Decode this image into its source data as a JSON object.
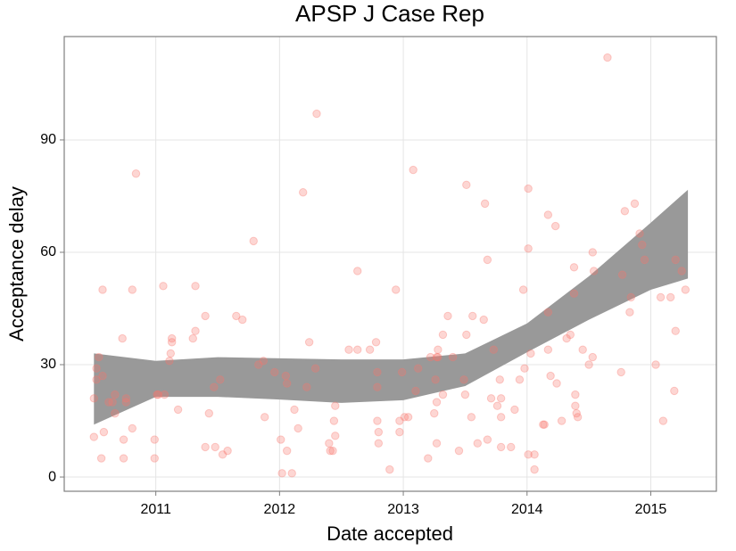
{
  "chart_data": {
    "type": "scatter",
    "title": "APSP J Case Rep",
    "x_label": "Date accepted",
    "y_label": "Acceptance delay",
    "xlim": [
      2010.26,
      2015.53
    ],
    "ylim": [
      -3.8,
      117.6
    ],
    "xticks": [
      2011,
      2012,
      2013,
      2014,
      2015
    ],
    "yticks": [
      0,
      30,
      60,
      90
    ],
    "grid": true,
    "color": "#f8766d",
    "x": [
      2010.5,
      2010.5,
      2010.52,
      2010.52,
      2010.54,
      2010.57,
      2010.57,
      2010.56,
      2010.58,
      2010.62,
      2010.65,
      2010.67,
      2010.67,
      2010.73,
      2010.74,
      2010.74,
      2010.76,
      2010.76,
      2010.81,
      2010.81,
      2010.84,
      2010.99,
      2010.99,
      2011.01,
      2011.02,
      2011.07,
      2011.06,
      2011.11,
      2011.12,
      2011.13,
      2011.13,
      2011.18,
      2011.3,
      2011.32,
      2011.32,
      2011.4,
      2011.4,
      2011.43,
      2011.47,
      2011.48,
      2011.52,
      2011.54,
      2011.58,
      2011.65,
      2011.7,
      2011.79,
      2011.83,
      2011.87,
      2011.88,
      2011.96,
      2012.01,
      2012.02,
      2012.05,
      2012.06,
      2012.06,
      2012.1,
      2012.12,
      2012.15,
      2012.19,
      2012.22,
      2012.24,
      2012.29,
      2012.3,
      2012.4,
      2012.41,
      2012.43,
      2012.44,
      2012.45,
      2012.45,
      2012.56,
      2012.63,
      2012.63,
      2012.73,
      2012.78,
      2012.79,
      2012.79,
      2012.79,
      2012.8,
      2012.8,
      2012.89,
      2012.94,
      2012.97,
      2012.97,
      2012.99,
      2013.01,
      2013.04,
      2013.08,
      2013.1,
      2013.12,
      2013.2,
      2013.22,
      2013.25,
      2013.26,
      2013.27,
      2013.27,
      2013.27,
      2013.28,
      2013.28,
      2013.32,
      2013.32,
      2013.36,
      2013.4,
      2013.45,
      2013.49,
      2013.5,
      2013.51,
      2013.51,
      2013.55,
      2013.56,
      2013.6,
      2013.65,
      2013.66,
      2013.68,
      2013.68,
      2013.71,
      2013.73,
      2013.76,
      2013.78,
      2013.79,
      2013.79,
      2013.79,
      2013.87,
      2013.9,
      2013.94,
      2013.97,
      2013.98,
      2014.01,
      2014.01,
      2014.01,
      2014.03,
      2014.06,
      2014.06,
      2014.14,
      2014.17,
      2014.17,
      2014.17,
      2014.19,
      2014.23,
      2014.24,
      2014.28,
      2014.32,
      2014.35,
      2014.38,
      2014.38,
      2014.39,
      2014.39,
      2014.4,
      2014.41,
      2014.45,
      2014.5,
      2014.53,
      2014.53,
      2014.54,
      2014.76,
      2014.77,
      2014.79,
      2014.83,
      2014.84,
      2014.87,
      2014.91,
      2014.93,
      2014.95,
      2015.04,
      2015.08,
      2015.1,
      2015.16,
      2015.19,
      2015.2,
      2015.2,
      2015.25,
      2015.28,
      2014.65,
      2014.13
    ],
    "values": [
      10.7,
      21,
      26,
      29,
      32,
      27,
      50,
      5,
      12,
      20,
      20,
      22,
      17,
      37,
      10,
      5,
      21,
      20,
      13,
      50,
      81,
      10,
      5,
      22,
      22,
      22,
      51,
      31,
      33,
      37,
      36,
      18,
      37,
      39,
      51,
      43,
      8,
      17,
      24,
      8,
      26,
      6,
      7,
      43,
      42,
      63,
      30,
      31,
      16,
      28,
      10,
      1,
      27,
      25,
      7,
      1,
      18,
      13,
      76,
      24,
      36,
      29,
      97,
      9,
      7,
      7,
      15,
      19,
      11,
      34,
      55,
      34,
      34,
      36,
      24,
      15,
      28,
      12,
      9,
      2,
      50,
      12,
      15,
      28,
      16,
      16,
      82,
      23,
      29,
      5,
      32,
      17,
      26,
      32,
      9,
      20,
      34,
      32,
      38,
      22,
      43,
      32,
      7,
      26,
      22,
      78,
      38,
      16,
      43,
      9,
      42,
      73,
      10,
      58,
      21,
      34,
      19,
      26,
      21,
      8,
      16,
      8,
      18,
      26,
      50,
      29,
      6,
      77,
      61,
      33,
      2,
      6,
      14,
      70,
      44,
      34,
      27,
      67,
      25,
      15,
      37,
      38,
      56,
      49,
      22,
      19,
      17,
      16,
      34,
      30,
      32,
      60,
      55,
      28,
      54,
      71,
      44,
      48,
      73,
      65,
      62,
      58,
      30,
      48,
      15,
      48,
      23,
      39,
      58,
      55,
      50,
      112,
      14
    ],
    "smooth": {
      "color": "#999999",
      "x": [
        2010.5,
        2011,
        2011.5,
        2012,
        2012.5,
        2013,
        2013.5,
        2014,
        2014.5,
        2015,
        2015.3
      ],
      "upper": [
        33,
        31,
        32,
        31.7,
        31.4,
        31.4,
        33,
        41,
        53.6,
        67.9,
        76.7
      ],
      "lower": [
        14,
        21.4,
        21.4,
        20.7,
        19.8,
        20.5,
        24.3,
        33.3,
        42,
        50,
        53
      ]
    }
  }
}
